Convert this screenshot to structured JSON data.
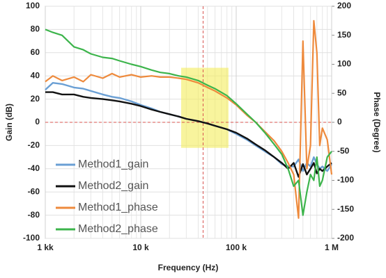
{
  "chart_data": {
    "type": "line",
    "x_label": "Frequency (Hz)",
    "y_label": "Gain (dB)",
    "y2_label": "Phase (Degree)",
    "xscale": "log",
    "grid": true,
    "legend": "lower left",
    "xlim": [
      1000,
      1000000
    ],
    "xticks": [
      {
        "value": 1000,
        "label": "1 kk"
      },
      {
        "value": 10000,
        "label": "10 k"
      },
      {
        "value": 100000,
        "label": "100 k"
      },
      {
        "value": 1000000,
        "label": "1 M"
      }
    ],
    "ylim": [
      -100,
      100
    ],
    "yticks": [
      -100,
      -80,
      -60,
      -40,
      -20,
      0,
      20,
      40,
      60,
      80,
      100
    ],
    "y2lim": [
      -200,
      200
    ],
    "y2ticks": [
      -200,
      -150,
      -100,
      -50,
      0,
      50,
      100,
      150,
      200
    ],
    "ref_lines": {
      "x": 45000,
      "y": 0,
      "color": "#d9534f"
    },
    "highlight": {
      "xlim": [
        26500,
        83000
      ],
      "ylim": [
        -22,
        47
      ],
      "color": "#f3ec5c"
    },
    "x": [
      1000,
      1200,
      1500,
      2000,
      2500,
      3000,
      4000,
      5000,
      6000,
      8000,
      10000,
      13000,
      16000,
      20000,
      25000,
      30000,
      40000,
      50000,
      60000,
      80000,
      100000,
      130000,
      160000,
      200000,
      250000,
      300000,
      350000,
      400000,
      450000,
      500000,
      550000,
      600000,
      650000,
      700000,
      750000,
      800000,
      900000,
      1000000
    ],
    "series": [
      {
        "name": "Method1_gain",
        "color": "#6a9fd4",
        "values": [
          28,
          34,
          33,
          30,
          29,
          27,
          24,
          22,
          21,
          18,
          15,
          12,
          9,
          7,
          5,
          3,
          1,
          -1,
          -3,
          -6,
          -10,
          -15,
          -20,
          -25,
          -30,
          -36,
          -38,
          -38,
          -32,
          -42,
          -35,
          -38,
          -30,
          -36,
          -40,
          -38,
          -42,
          -36
        ]
      },
      {
        "name": "Method2_gain",
        "color": "#111111",
        "values": [
          26,
          26,
          24,
          24,
          22,
          21,
          20,
          19,
          18,
          16,
          14,
          11,
          9,
          7,
          5,
          3,
          1,
          -1,
          -3,
          -6,
          -9,
          -14,
          -19,
          -24,
          -30,
          -35,
          -40,
          -35,
          -47,
          -36,
          -45,
          -40,
          -35,
          -44,
          -40,
          -42,
          -38,
          -35
        ]
      },
      {
        "name": "Method1_phase",
        "color": "#ee8a3c",
        "axis": "y2",
        "values": [
          70,
          80,
          72,
          78,
          70,
          82,
          76,
          84,
          78,
          82,
          78,
          80,
          78,
          78,
          76,
          74,
          68,
          60,
          54,
          42,
          30,
          12,
          0,
          -16,
          -32,
          -50,
          -70,
          -90,
          -165,
          140,
          -80,
          -40,
          175,
          120,
          -40,
          -10,
          -30,
          -90
        ]
      },
      {
        "name": "Method2_phase",
        "color": "#3cb44b",
        "axis": "y2",
        "values": [
          160,
          155,
          150,
          130,
          125,
          118,
          112,
          110,
          106,
          100,
          96,
          90,
          86,
          84,
          80,
          78,
          72,
          64,
          58,
          46,
          32,
          14,
          0,
          -18,
          -38,
          -55,
          -80,
          -110,
          -100,
          -160,
          -120,
          -90,
          -100,
          -60,
          -110,
          -100,
          -60,
          -50
        ]
      }
    ]
  }
}
